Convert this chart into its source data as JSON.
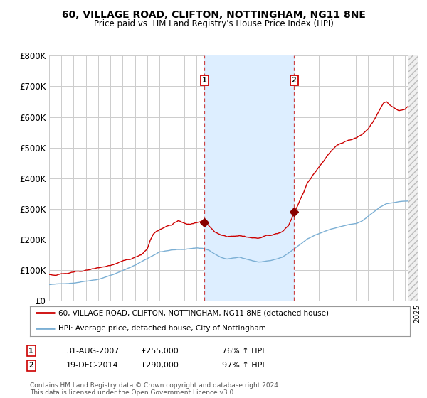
{
  "title1": "60, VILLAGE ROAD, CLIFTON, NOTTINGHAM, NG11 8NE",
  "title2": "Price paid vs. HM Land Registry's House Price Index (HPI)",
  "ylim": [
    0,
    800000
  ],
  "yticks": [
    0,
    100000,
    200000,
    300000,
    400000,
    500000,
    600000,
    700000,
    800000
  ],
  "legend_line1": "60, VILLAGE ROAD, CLIFTON, NOTTINGHAM, NG11 8NE (detached house)",
  "legend_line2": "HPI: Average price, detached house, City of Nottingham",
  "line1_color": "#cc0000",
  "line2_color": "#7bafd4",
  "annotation1": {
    "label": "1",
    "date_str": "31-AUG-2007",
    "price_str": "£255,000",
    "hpi_str": "76% ↑ HPI"
  },
  "annotation2": {
    "label": "2",
    "date_str": "19-DEC-2014",
    "price_str": "£290,000",
    "hpi_str": "97% ↑ HPI"
  },
  "footnote": "Contains HM Land Registry data © Crown copyright and database right 2024.\nThis data is licensed under the Open Government Licence v3.0.",
  "sale1_year": 2007.667,
  "sale1_price": 255000,
  "sale2_year": 2014.958,
  "sale2_price": 290000,
  "xmin": 1995,
  "xmax": 2025,
  "shaded_region_color": "#ddeeff",
  "background_color": "#ffffff",
  "grid_color": "#cccccc"
}
